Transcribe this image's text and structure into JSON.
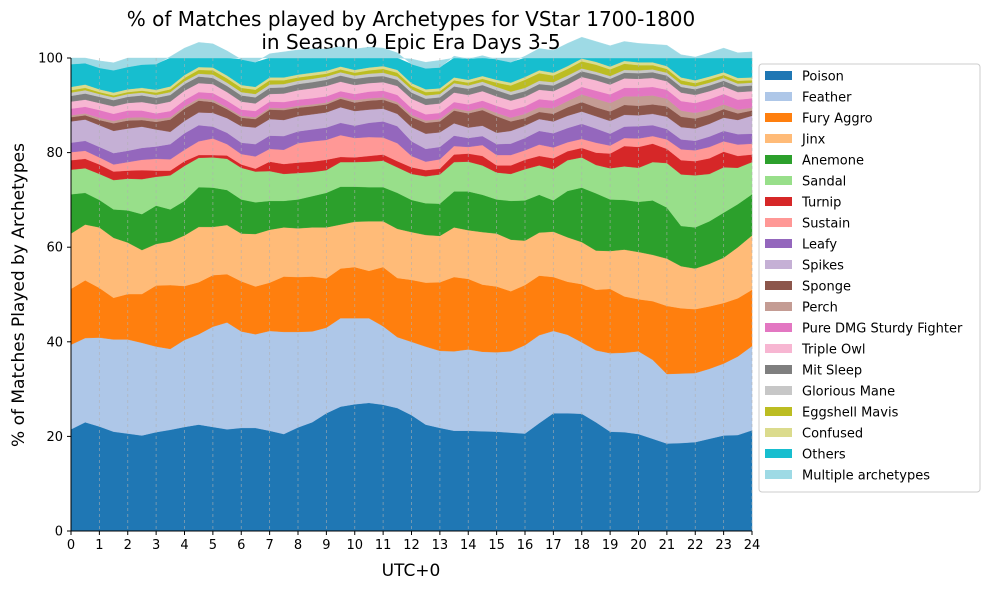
{
  "chart_data": {
    "type": "area",
    "stacked": true,
    "title": "% of Matches played by Archetypes for VStar 1700-1800\nin Season 9 Epic Era Days 3-5",
    "xlabel": "UTC+0",
    "ylabel": "% of Matches Played by Archetypes",
    "xlim": [
      0,
      24
    ],
    "ylim": [
      0,
      100
    ],
    "xticks": [
      0,
      1,
      2,
      3,
      4,
      5,
      6,
      7,
      8,
      9,
      10,
      11,
      12,
      13,
      14,
      15,
      16,
      17,
      18,
      19,
      20,
      21,
      22,
      23,
      24
    ],
    "yticks": [
      0,
      20,
      40,
      60,
      80,
      100
    ],
    "grid": "vertical dashed",
    "legend_position": "right",
    "x": [
      0,
      0.5,
      1,
      1.5,
      2,
      2.5,
      3,
      3.5,
      4,
      4.5,
      5,
      5.5,
      6,
      6.5,
      7,
      7.5,
      8,
      8.5,
      9,
      9.5,
      10,
      10.5,
      11,
      11.5,
      12,
      12.5,
      13,
      13.5,
      14,
      14.5,
      15,
      15.5,
      16,
      16.5,
      17,
      17.5,
      18,
      18.5,
      19,
      19.5,
      20,
      20.5,
      21,
      21.5,
      22,
      22.5,
      23,
      23.5,
      24
    ],
    "series": [
      {
        "name": "Poison",
        "color": "#1f77b4",
        "values": [
          21.5,
          23,
          22.1,
          21,
          20.6,
          20.2,
          20.9,
          21.4,
          22,
          22.5,
          22,
          21.5,
          21.8,
          21.8,
          21.2,
          20.5,
          21.9,
          23,
          24.9,
          26.3,
          26.8,
          27.1,
          26.7,
          26,
          24.5,
          22.5,
          21.8,
          21.2,
          21.2,
          21.1,
          21,
          20.8,
          20.6,
          22.8,
          24.9,
          24.9,
          24.8,
          23,
          21,
          20.9,
          20.5,
          19.5,
          18.5,
          18.6,
          18.8,
          19.5,
          20.2,
          20.3,
          21.3
        ]
      },
      {
        "name": "Feather",
        "color": "#aec7e8",
        "values": [
          17.9,
          17.8,
          18.8,
          19.5,
          19.9,
          19.6,
          18.1,
          17.1,
          18.4,
          19.1,
          21.2,
          22.6,
          20.4,
          19.8,
          21.1,
          21.6,
          20.2,
          19.2,
          18.1,
          18.7,
          18.2,
          17.9,
          16.6,
          15,
          15.5,
          16.5,
          16.3,
          16.8,
          17.2,
          16.8,
          16.8,
          17.2,
          18.7,
          18.6,
          17.4,
          16.6,
          15.1,
          15.2,
          16.6,
          16.8,
          17.5,
          16.7,
          14.7,
          14.7,
          14.6,
          14.8,
          15.2,
          16.6,
          17.8
        ]
      },
      {
        "name": "Fury Aggro",
        "color": "#ff7f0e",
        "values": [
          11.8,
          12.2,
          10.5,
          8.8,
          9.6,
          10.3,
          12.9,
          13.5,
          11.4,
          11,
          10.9,
          10.2,
          10.6,
          10.1,
          10.2,
          11.7,
          11.6,
          11.6,
          10.4,
          10.5,
          10.8,
          10,
          12.5,
          12.5,
          13.1,
          13.5,
          14.5,
          15.7,
          14.9,
          14.2,
          13.9,
          12.7,
          12.7,
          12.6,
          11.4,
          11.2,
          12.3,
          12.8,
          13.6,
          11.9,
          11,
          12.4,
          14.4,
          13.8,
          13.5,
          13.2,
          12.8,
          12.3,
          11.9
        ]
      },
      {
        "name": "Jinx",
        "color": "#ffbb78",
        "values": [
          11.7,
          11.8,
          12.8,
          12.7,
          10.9,
          9.3,
          8.8,
          9.2,
          10.7,
          11.7,
          10.2,
          10.4,
          10.1,
          11.1,
          11.2,
          10.4,
          10.3,
          10.4,
          10.8,
          9.3,
          9.6,
          10.5,
          9.7,
          10.4,
          10.1,
          10.1,
          9.8,
          10.5,
          10.3,
          11.1,
          11.2,
          10.9,
          9.4,
          9.1,
          9.6,
          9.4,
          8.9,
          8.3,
          8,
          9.9,
          10,
          9.8,
          10,
          8.9,
          8.6,
          9,
          9.6,
          10.8,
          11.5
        ]
      },
      {
        "name": "Anemone",
        "color": "#2ca02c",
        "values": [
          8.3,
          6.7,
          5.8,
          6,
          6.8,
          7.6,
          8.1,
          6.8,
          7.3,
          8.4,
          8.3,
          7.4,
          7.2,
          6.7,
          6.1,
          5.6,
          6.1,
          6.6,
          7.3,
          8,
          7.4,
          7.2,
          7.2,
          7.6,
          6.8,
          6.7,
          6.8,
          7.6,
          8.2,
          7.9,
          7.2,
          8.2,
          8.5,
          8,
          6.6,
          9.8,
          11.5,
          12.1,
          10.9,
          10.5,
          10.6,
          11.5,
          10.8,
          8.5,
          8.7,
          9,
          9.5,
          9.1,
          8.7
        ]
      },
      {
        "name": "Sandal",
        "color": "#98df8a",
        "values": [
          5.2,
          5.2,
          5.5,
          6.2,
          6.7,
          7.4,
          6.1,
          7.2,
          7.4,
          6.2,
          6.4,
          6.6,
          6.7,
          6.5,
          6.3,
          5.7,
          5.6,
          5.1,
          4.8,
          5.2,
          5.2,
          5.4,
          5.6,
          5.4,
          5.5,
          5.7,
          6.2,
          6.2,
          6.3,
          6.2,
          5.7,
          5.7,
          6.6,
          6.2,
          6.6,
          6.5,
          6.4,
          6,
          6.6,
          7.1,
          7.2,
          8.1,
          9.4,
          10.9,
          11,
          10,
          9.6,
          7.7,
          6.8
        ]
      },
      {
        "name": "Turnip",
        "color": "#d62728",
        "values": [
          2,
          2,
          2,
          1.8,
          1.7,
          1.9,
          1.3,
          1,
          1,
          0.6,
          0.5,
          0.7,
          0.7,
          0.6,
          2,
          2.1,
          2.2,
          2.2,
          2.2,
          1.1,
          1,
          1.2,
          1.3,
          1.3,
          1.4,
          1.3,
          1.2,
          1.6,
          1.7,
          2,
          1.5,
          1.8,
          2,
          2,
          2.3,
          1.9,
          2,
          2.6,
          3.1,
          4.3,
          4.4,
          3.9,
          3,
          3,
          3,
          3.3,
          3.3,
          2.5,
          1.6
        ]
      },
      {
        "name": "Sustain",
        "color": "#ff9896",
        "values": [
          1.7,
          1.7,
          1.5,
          1.5,
          1.8,
          2.2,
          2.5,
          2.4,
          2.4,
          2.9,
          3.5,
          2.4,
          2.2,
          2.6,
          2.7,
          3,
          4.1,
          4.3,
          4.2,
          4.6,
          4.1,
          4,
          3.6,
          3.8,
          2.4,
          1.8,
          2,
          1.8,
          1.4,
          2.3,
          2.2,
          2.2,
          2,
          2.4,
          2.3,
          1.9,
          1.9,
          2.1,
          1.7,
          1.7,
          1.8,
          1.6,
          2,
          2.3,
          2.3,
          2.4,
          2.2,
          2.4,
          2.3
        ]
      },
      {
        "name": "Leafy",
        "color": "#9467bd",
        "values": [
          2,
          2.1,
          2.2,
          2.4,
          2.4,
          2.5,
          2.6,
          3.2,
          3.5,
          3.4,
          2.5,
          2.4,
          2.4,
          2.6,
          2.8,
          2.9,
          2.5,
          2.5,
          2.6,
          2.6,
          2.6,
          3,
          3.4,
          3.6,
          3.1,
          2.7,
          2.6,
          2.2,
          1.9,
          1.9,
          2.3,
          2.4,
          2.6,
          2.9,
          3,
          3,
          3.2,
          3,
          2.5,
          2.4,
          2.6,
          2.3,
          2.2,
          2.1,
          2,
          2.2,
          2.2,
          2.2,
          2.1
        ]
      },
      {
        "name": "Spikes",
        "color": "#c5b0d5",
        "values": [
          4.5,
          4.5,
          4.6,
          4.7,
          4.7,
          4.5,
          3.6,
          2.6,
          2.6,
          2.7,
          2.9,
          3.1,
          3.5,
          3.5,
          3.5,
          3.4,
          3.2,
          3.2,
          3.2,
          3.3,
          3.1,
          2.8,
          2.7,
          2.6,
          3,
          3.2,
          3.1,
          2.6,
          2.2,
          2.2,
          2.4,
          2.7,
          2.6,
          2.5,
          2.5,
          2.6,
          2.6,
          2.6,
          2.7,
          2.5,
          2.3,
          2.4,
          2.6,
          2.6,
          2.6,
          2.7,
          2.8,
          3,
          3.8
        ]
      },
      {
        "name": "Sponge",
        "color": "#8c564b",
        "values": [
          0.9,
          0.9,
          1.1,
          1.6,
          1.7,
          1.4,
          1.6,
          2.6,
          2.6,
          2.5,
          2.3,
          1.9,
          1.8,
          1.8,
          2,
          2.1,
          1.8,
          1.7,
          1.7,
          1.8,
          1.8,
          1.9,
          1.9,
          2,
          2.1,
          2.3,
          2.3,
          2.7,
          3,
          3.3,
          3.5,
          2,
          1.6,
          1.5,
          1.6,
          1.8,
          2,
          1.9,
          2,
          2.1,
          2,
          2,
          2.2,
          2.2,
          2.1,
          1.9,
          1.8,
          1.4,
          1.1
        ]
      },
      {
        "name": "Perch",
        "color": "#c49c94",
        "values": [
          0.4,
          0.4,
          0.5,
          0.5,
          0.6,
          0.6,
          0.6,
          0.5,
          0.5,
          0.5,
          0.5,
          0.4,
          0.4,
          0.4,
          0.4,
          0.4,
          0.4,
          0.4,
          0.4,
          0.4,
          0.5,
          0.5,
          0.5,
          0.5,
          0.5,
          0.5,
          0.5,
          0.5,
          0.5,
          0.6,
          0.7,
          0.8,
          0.9,
          1,
          1.2,
          1.3,
          1.6,
          1.8,
          1.8,
          1.8,
          2,
          1.9,
          1.6,
          1.3,
          1.2,
          1.1,
          1,
          0.8,
          0.6
        ]
      },
      {
        "name": "Pure DMG Sturdy Fighter",
        "color": "#e377c2",
        "values": [
          1.4,
          1.4,
          1.6,
          1.5,
          1.5,
          1.4,
          1.2,
          1.3,
          1.3,
          1.3,
          1.4,
          1.4,
          1.3,
          1.3,
          1.3,
          1.3,
          1.3,
          1.3,
          1.3,
          1.2,
          1.3,
          1.4,
          1.4,
          1.5,
          1.4,
          1.3,
          1.3,
          1.3,
          1.4,
          1.4,
          1.5,
          1.6,
          1.6,
          1.7,
          1.6,
          1.5,
          1.6,
          1.7,
          1.8,
          1.8,
          1.8,
          1.8,
          1.9,
          2,
          2.1,
          2.2,
          2.2,
          2.1,
          2
        ]
      },
      {
        "name": "Triple Owl",
        "color": "#f7b6d2",
        "values": [
          1.5,
          1.5,
          1.5,
          1.6,
          1.6,
          1.8,
          1.9,
          2,
          2,
          1.9,
          1.9,
          1.8,
          1.7,
          1.6,
          1.6,
          1.8,
          2,
          2.1,
          2.2,
          2,
          1.9,
          1.8,
          1.8,
          1.9,
          2,
          2,
          2,
          2,
          2,
          2,
          2,
          2,
          2,
          2,
          2,
          2,
          2.1,
          2.2,
          2.1,
          2,
          1.9,
          1.9,
          1.8,
          1.8,
          1.7,
          1.7,
          1.6,
          1.6,
          1.5
        ]
      },
      {
        "name": "Mit Sleep",
        "color": "#7f7f7f",
        "values": [
          1.2,
          1.3,
          1.3,
          1.3,
          1.3,
          1.4,
          1.4,
          1.4,
          1.4,
          1.4,
          1.3,
          1.3,
          1.3,
          1.3,
          1.3,
          1.3,
          1.3,
          1.3,
          1.3,
          1.3,
          1.3,
          1.3,
          1.3,
          1.3,
          1.3,
          1.3,
          1.3,
          1.3,
          1.3,
          1.3,
          1.3,
          1.2,
          1.2,
          1.2,
          1.2,
          1.2,
          1.2,
          1.2,
          1.2,
          1.2,
          1.2,
          1.2,
          1.2,
          1.2,
          1.2,
          1.2,
          1.2,
          1.2,
          1.2
        ]
      },
      {
        "name": "Glorious Mane",
        "color": "#c7c7c7",
        "values": [
          0.7,
          0.7,
          0.6,
          0.6,
          0.6,
          0.6,
          0.6,
          0.6,
          0.6,
          0.6,
          0.7,
          0.7,
          0.7,
          0.7,
          0.7,
          0.7,
          0.7,
          0.7,
          0.7,
          0.7,
          0.7,
          0.7,
          0.7,
          0.7,
          0.7,
          0.7,
          0.7,
          0.7,
          0.7,
          0.7,
          0.7,
          0.7,
          0.7,
          0.7,
          0.7,
          0.7,
          0.6,
          0.6,
          0.6,
          0.6,
          0.6,
          0.6,
          0.6,
          0.6,
          0.6,
          0.6,
          0.6,
          0.6,
          0.6
        ]
      },
      {
        "name": "Eggshell Mavis",
        "color": "#bcbd22",
        "values": [
          0.5,
          0.5,
          0.4,
          0.4,
          0.4,
          0.4,
          0.5,
          0.6,
          0.7,
          0.8,
          0.9,
          0.9,
          0.9,
          0.9,
          0.9,
          0.8,
          0.7,
          0.7,
          0.6,
          0.6,
          0.6,
          0.7,
          0.8,
          0.8,
          0.7,
          0.7,
          0.6,
          0.6,
          0.6,
          0.6,
          0.9,
          1.3,
          1.7,
          1.6,
          1.4,
          1.4,
          1.5,
          1.5,
          1.4,
          1.3,
          1.1,
          0.9,
          0.8,
          0.8,
          0.7,
          0.7,
          0.6,
          0.6,
          0.5
        ]
      },
      {
        "name": "Confused",
        "color": "#dbdb8d",
        "values": [
          0.7,
          0.7,
          0.6,
          0.6,
          0.6,
          0.6,
          0.6,
          0.6,
          0.6,
          0.6,
          0.6,
          0.6,
          0.6,
          0.6,
          0.6,
          0.6,
          0.6,
          0.6,
          0.6,
          0.6,
          0.6,
          0.6,
          0.6,
          0.6,
          0.6,
          0.6,
          0.6,
          0.6,
          0.6,
          0.6,
          0.6,
          0.6,
          0.6,
          0.6,
          0.6,
          0.6,
          0.6,
          0.6,
          0.6,
          0.6,
          0.6,
          0.6,
          0.6,
          0.6,
          0.6,
          0.6,
          0.6,
          0.6,
          0.6
        ]
      },
      {
        "name": "Others",
        "color": "#17becf",
        "values": [
          4.8,
          4.5,
          4.5,
          4.7,
          4.7,
          4.9,
          5.4,
          6.3,
          5.7,
          5.2,
          5,
          5.2,
          5.4,
          5.2,
          5,
          5.4,
          5.2,
          5,
          4.6,
          4.2,
          4.4,
          4.3,
          3.8,
          3.6,
          4,
          4.4,
          4.4,
          4.5,
          4.4,
          4.3,
          4.3,
          4.3,
          4.4,
          4.6,
          4.7,
          4.8,
          4.5,
          4.3,
          4.4,
          4.1,
          4,
          3.8,
          4.4,
          4.8,
          4.9,
          5,
          5.1,
          5.3,
          5.4
        ]
      },
      {
        "name": "Multiple archetypes",
        "color": "#9edae5",
        "values": [
          1.3,
          1.1,
          1.5,
          1.6,
          1.9,
          1.9,
          2.3,
          1.2,
          0.8,
          0.9,
          1,
          1.1,
          1.3,
          1.4,
          1.4,
          1.1,
          1.2,
          1.6,
          1.8,
          1.7,
          1.7,
          1.5,
          1.4,
          1.1,
          1.1,
          1.3,
          1.5,
          1.3,
          1.4,
          1.8,
          1.9,
          2.6,
          2.3,
          1.7,
          1.3,
          1.0,
          1.1,
          1.2,
          1.4,
          1.8,
          1.9,
          1.7,
          2.0,
          3.4,
          3.2,
          2.8,
          2.5,
          2.0,
          1.6
        ]
      }
    ]
  }
}
